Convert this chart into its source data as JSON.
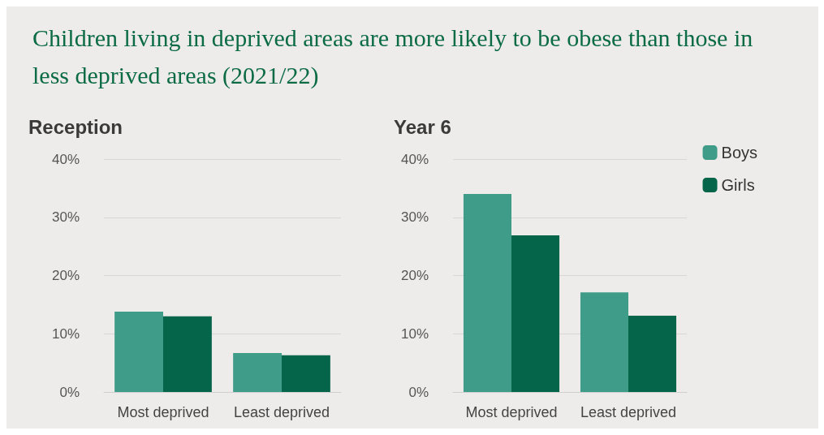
{
  "chart_data": [
    {
      "type": "bar",
      "title": "Children living in deprived areas are more likely to be obese than those in less deprived areas (2021/22)",
      "subtitle": "Reception",
      "categories": [
        "Most deprived",
        "Least deprived"
      ],
      "series": [
        {
          "color": "#3f9c88",
          "values": [
            13.8,
            6.7
          ]
        },
        {
          "color": "#05654a",
          "values": [
            13.0,
            6.3
          ]
        }
      ],
      "ylim": [
        0,
        40
      ],
      "yticks": [
        {
          "value": 0,
          "label": "0%"
        },
        {
          "value": 10,
          "label": "10%"
        },
        {
          "value": 20,
          "label": "20%"
        },
        {
          "value": 30,
          "label": "30%"
        },
        {
          "value": 40,
          "label": "40%"
        }
      ],
      "grid": "y",
      "legend": false
    },
    {
      "type": "bar",
      "subtitle": "Year 6",
      "categories": [
        "Most deprived",
        "Least deprived"
      ],
      "series": [
        {
          "name": "Boys",
          "color": "#3f9c88",
          "values": [
            34.0,
            17.1
          ]
        },
        {
          "name": "Girls",
          "color": "#05654a",
          "values": [
            26.9,
            13.1
          ]
        }
      ],
      "ylim": [
        0,
        40
      ],
      "yticks": [
        {
          "value": 0,
          "label": "0%"
        },
        {
          "value": 10,
          "label": "10%"
        },
        {
          "value": 20,
          "label": "20%"
        },
        {
          "value": 30,
          "label": "30%"
        },
        {
          "value": 40,
          "label": "40%"
        }
      ],
      "grid": "y",
      "legend": "top right"
    }
  ]
}
